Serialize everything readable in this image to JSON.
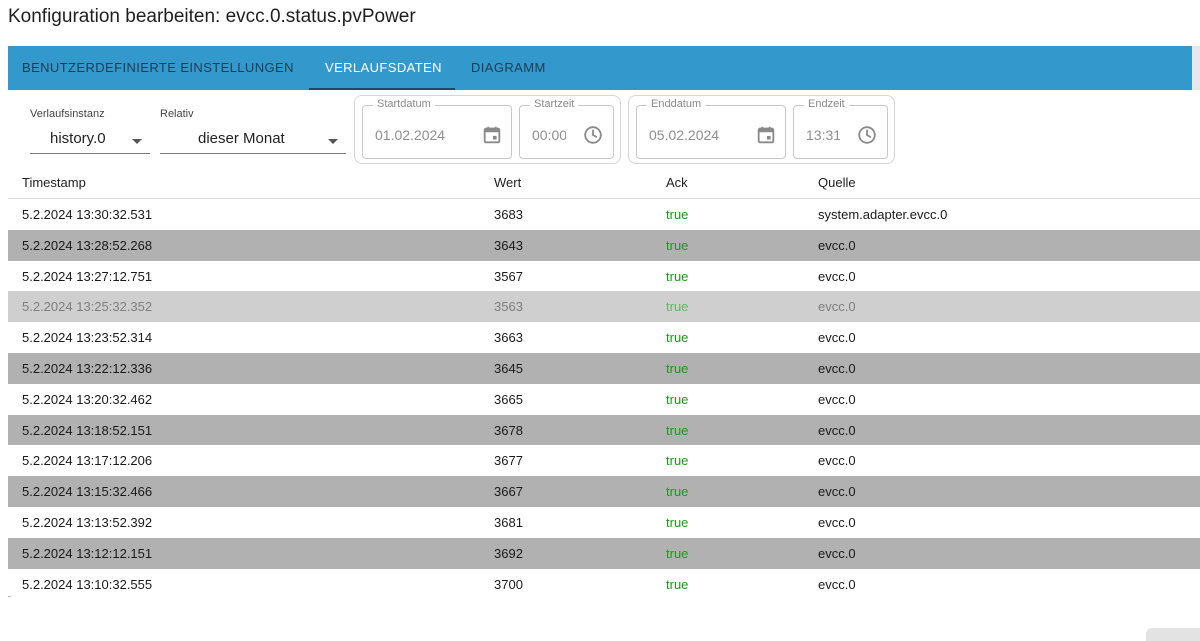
{
  "title": "Konfiguration bearbeiten: evcc.0.status.pvPower",
  "tabs": [
    {
      "label": "BENUTZERDEFINIERTE EINSTELLUNGEN",
      "active": false
    },
    {
      "label": "VERLAUFSDATEN",
      "active": true
    },
    {
      "label": "DIAGRAMM",
      "active": false
    }
  ],
  "filters": {
    "instance": {
      "label": "Verlaufsinstanz",
      "value": "history.0"
    },
    "relative": {
      "label": "Relativ",
      "value": "dieser Monat"
    },
    "start_date": {
      "label": "Startdatum",
      "value": "01.02.2024",
      "icon": "calendar-icon"
    },
    "start_time": {
      "label": "Startzeit",
      "value": "00:00",
      "icon": "clock-icon"
    },
    "end_date": {
      "label": "Enddatum",
      "value": "05.02.2024",
      "icon": "calendar-icon"
    },
    "end_time": {
      "label": "Endzeit",
      "value": "13:31",
      "icon": "clock-icon"
    }
  },
  "table": {
    "columns": [
      "Timestamp",
      "Wert",
      "Ack",
      "Quelle"
    ],
    "rows": [
      {
        "ts": "5.2.2024 13:30:32.531",
        "val": "3683",
        "ack": "true",
        "src": "system.adapter.evcc.0"
      },
      {
        "ts": "5.2.2024 13:28:52.268",
        "val": "3643",
        "ack": "true",
        "src": "evcc.0"
      },
      {
        "ts": "5.2.2024 13:27:12.751",
        "val": "3567",
        "ack": "true",
        "src": "evcc.0"
      },
      {
        "ts": "5.2.2024 13:25:32.352",
        "val": "3563",
        "ack": "true",
        "src": "evcc.0"
      },
      {
        "ts": "5.2.2024 13:23:52.314",
        "val": "3663",
        "ack": "true",
        "src": "evcc.0"
      },
      {
        "ts": "5.2.2024 13:22:12.336",
        "val": "3645",
        "ack": "true",
        "src": "evcc.0"
      },
      {
        "ts": "5.2.2024 13:20:32.462",
        "val": "3665",
        "ack": "true",
        "src": "evcc.0"
      },
      {
        "ts": "5.2.2024 13:18:52.151",
        "val": "3678",
        "ack": "true",
        "src": "evcc.0"
      },
      {
        "ts": "5.2.2024 13:17:12.206",
        "val": "3677",
        "ack": "true",
        "src": "evcc.0"
      },
      {
        "ts": "5.2.2024 13:15:32.466",
        "val": "3667",
        "ack": "true",
        "src": "evcc.0"
      },
      {
        "ts": "5.2.2024 13:13:52.392",
        "val": "3681",
        "ack": "true",
        "src": "evcc.0"
      },
      {
        "ts": "5.2.2024 13:12:12.151",
        "val": "3692",
        "ack": "true",
        "src": "evcc.0"
      },
      {
        "ts": "5.2.2024 13:10:32.555",
        "val": "3700",
        "ack": "true",
        "src": "evcc.0"
      }
    ]
  },
  "colors": {
    "tabbar": "#3399cc",
    "row_shade": "#b1b1b1",
    "row_hover": "#cfcfcf",
    "ack_true": "#1a9a1a"
  }
}
